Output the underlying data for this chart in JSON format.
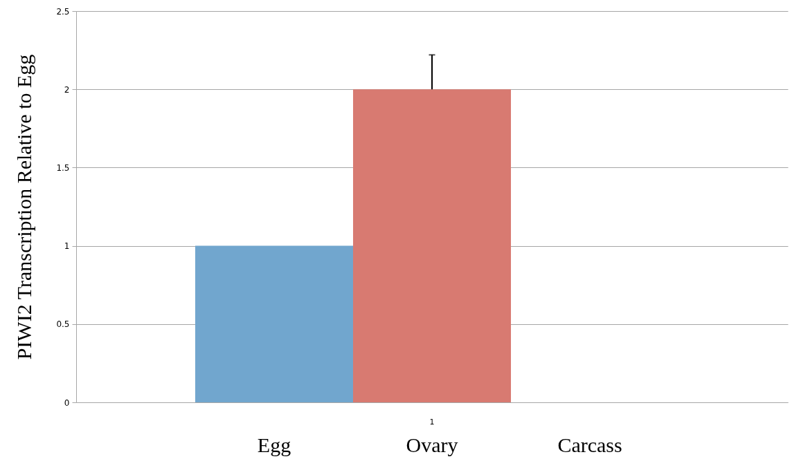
{
  "chart_data": {
    "type": "bar",
    "ylabel": "PIWI2 Transcription Relative to Egg",
    "categories": [
      "1"
    ],
    "series": [
      {
        "name": "Egg",
        "color": "#71a6ce",
        "values": [
          1
        ]
      },
      {
        "name": "Ovary",
        "color": "#d87a71",
        "values": [
          2
        ],
        "errors": [
          [
            2,
            2.22
          ]
        ]
      },
      {
        "name": "Carcass",
        "values": [
          0
        ]
      }
    ],
    "ylim": [
      0,
      2.5
    ],
    "yticks": [
      0,
      0.5,
      1,
      1.5,
      2,
      2.5
    ],
    "grid": "y"
  }
}
